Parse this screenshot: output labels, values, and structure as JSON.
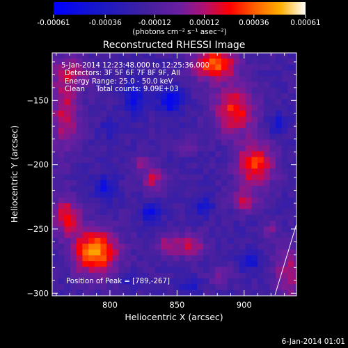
{
  "chart_data": {
    "type": "heatmap",
    "title": "Reconstructed RHESSI Image",
    "xlabel": "Heliocentric X (arcsec)",
    "ylabel": "Heliocentric Y (arcsec)",
    "xlim": [
      757,
      939
    ],
    "ylim": [
      -302,
      -113
    ],
    "x_ticks": [
      800,
      850,
      900
    ],
    "y_ticks": [
      -150,
      -200,
      -250,
      -300
    ],
    "colorbar": {
      "range": [
        -0.00061,
        0.00061
      ],
      "tick_values": [
        -0.00061,
        -0.00036,
        -0.00012,
        0.00012,
        0.00036,
        0.00061
      ],
      "tick_labels": [
        "-0.00061",
        "-0.00036",
        "-0.00012",
        "0.00012",
        "0.00036",
        "0.00061"
      ],
      "units": "(photons cm⁻² s⁻¹ asec⁻²)"
    },
    "annotations": [
      "5-Jan-2014 12:23:48.000 to 12:25:36.000",
      "Detectors: 3F 5F 6F 7F 8F 9F, All",
      "Energy Range: 25.0 - 50.0 keV",
      "Clean     Total counts: 9.09E+03"
    ],
    "peak_label": "Position of Peak = [789,-267]",
    "peak": {
      "x": 789,
      "y": -267,
      "value": 0.00061
    },
    "sources": [
      {
        "x": 789,
        "y": -268,
        "sx": 12,
        "sy": 12,
        "amp": 0.00061
      },
      {
        "x": 767,
        "y": -240,
        "sx": 8,
        "sy": 10,
        "amp": 0.0004
      },
      {
        "x": 878,
        "y": -122,
        "sx": 12,
        "sy": 9,
        "amp": 0.00052
      },
      {
        "x": 893,
        "y": -158,
        "sx": 11,
        "sy": 13,
        "amp": 0.00044
      },
      {
        "x": 908,
        "y": -200,
        "sx": 10,
        "sy": 12,
        "amp": 0.00048
      },
      {
        "x": 900,
        "y": -228,
        "sx": 7,
        "sy": 6,
        "amp": 0.0003
      },
      {
        "x": 766,
        "y": -160,
        "sx": 8,
        "sy": 22,
        "amp": 0.00032
      },
      {
        "x": 772,
        "y": -128,
        "sx": 10,
        "sy": 8,
        "amp": 0.00024
      },
      {
        "x": 832,
        "y": -211,
        "sx": 6,
        "sy": 7,
        "amp": 0.0003
      },
      {
        "x": 824,
        "y": -198,
        "sx": 4,
        "sy": 4,
        "amp": 0.00022
      },
      {
        "x": 860,
        "y": -263,
        "sx": 8,
        "sy": 7,
        "amp": 0.0003
      },
      {
        "x": 843,
        "y": -262,
        "sx": 6,
        "sy": 6,
        "amp": 0.00024
      },
      {
        "x": 935,
        "y": -285,
        "sx": 9,
        "sy": 15,
        "amp": 0.0003
      },
      {
        "x": 882,
        "y": -286,
        "sx": 6,
        "sy": 6,
        "amp": 0.00018
      },
      {
        "x": 920,
        "y": -250,
        "sx": 4,
        "sy": 5,
        "amp": 0.00018
      },
      {
        "x": 858,
        "y": -186,
        "sx": 5,
        "sy": 5,
        "amp": 0.00016
      },
      {
        "x": 845,
        "y": -150,
        "sx": 6,
        "sy": 7,
        "amp": -0.00042
      },
      {
        "x": 818,
        "y": -148,
        "sx": 5,
        "sy": 10,
        "amp": -0.00032
      },
      {
        "x": 830,
        "y": -237,
        "sx": 5,
        "sy": 5,
        "amp": -0.0003
      },
      {
        "x": 796,
        "y": -218,
        "sx": 5,
        "sy": 7,
        "amp": -0.00028
      },
      {
        "x": 905,
        "y": -275,
        "sx": 6,
        "sy": 5,
        "amp": -0.00026
      },
      {
        "x": 870,
        "y": -232,
        "sx": 5,
        "sy": 5,
        "amp": -0.00024
      },
      {
        "x": 925,
        "y": -168,
        "sx": 5,
        "sy": 6,
        "amp": -0.00022
      },
      {
        "x": 800,
        "y": -172,
        "sx": 4,
        "sy": 5,
        "amp": -0.0002
      },
      {
        "x": 860,
        "y": -295,
        "sx": 5,
        "sy": 4,
        "amp": -0.00022
      },
      {
        "x": 812,
        "y": -290,
        "sx": 4,
        "sy": 4,
        "amp": -0.00018
      }
    ],
    "background": -0.00017
  },
  "colors": {
    "background": "#000000",
    "text": "#ffffff"
  },
  "footer_date": "6-Jan-2014 01:01"
}
